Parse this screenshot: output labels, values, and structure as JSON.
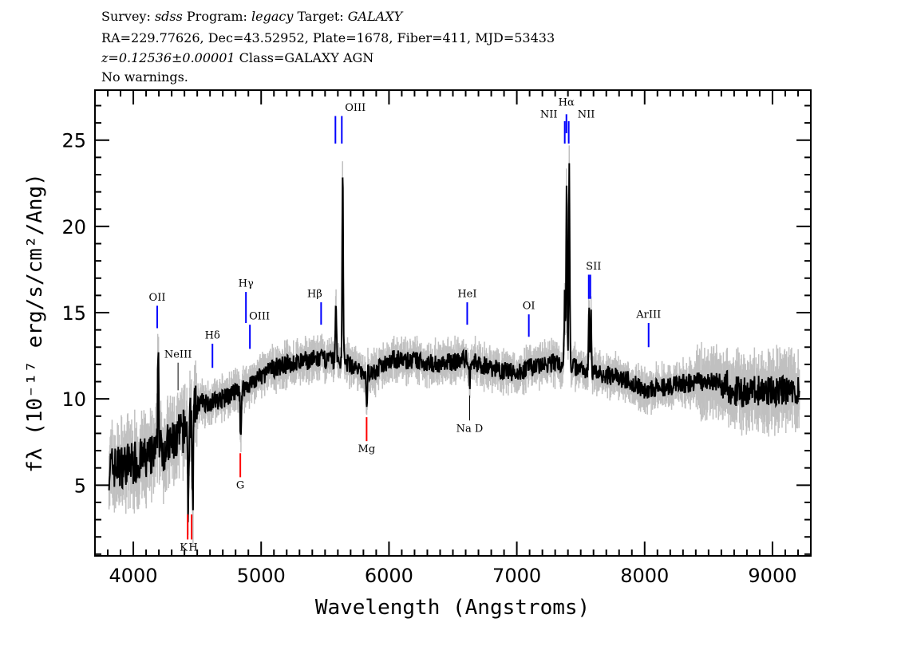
{
  "header": {
    "line1": [
      {
        "text": "Survey: ",
        "italic": false
      },
      {
        "text": "sdss",
        "italic": true
      },
      {
        "text": " Program: ",
        "italic": false
      },
      {
        "text": "legacy",
        "italic": true
      },
      {
        "text": " Target: ",
        "italic": false
      },
      {
        "text": "GALAXY",
        "italic": true
      }
    ],
    "line2": "RA=229.77626, Dec=43.52952, Plate=1678, Fiber=411, MJD=53433",
    "line3": [
      {
        "text": "z=0.12536±0.00001",
        "italic": true
      },
      {
        "text": " Class=GALAXY AGN",
        "italic": false
      }
    ],
    "line4": "No warnings."
  },
  "chart_data": {
    "type": "line",
    "xlabel": "Wavelength (Angstroms)",
    "ylabel": "fλ (10⁻¹⁷ erg/s/cm²/Ang)",
    "xlim": [
      3700,
      9300
    ],
    "ylim": [
      0.9,
      27.9
    ],
    "xticks": [
      4000,
      5000,
      6000,
      7000,
      8000,
      9000
    ],
    "yticks": [
      5,
      10,
      15,
      20,
      25
    ],
    "grid": false,
    "colors": {
      "flux": "#000000",
      "error_band": "#c0c0c0",
      "emission": "#0000ff",
      "absorption": "#ff0000",
      "neutral": "#000000"
    },
    "continuum": [
      [
        3810,
        6.0
      ],
      [
        3900,
        6.1
      ],
      [
        4000,
        6.3
      ],
      [
        4100,
        6.5
      ],
      [
        4180,
        6.8
      ],
      [
        4250,
        7.2
      ],
      [
        4330,
        7.6
      ],
      [
        4400,
        8.2
      ],
      [
        4480,
        9.4
      ],
      [
        4520,
        9.8
      ],
      [
        4600,
        9.8
      ],
      [
        4700,
        10.0
      ],
      [
        4800,
        10.4
      ],
      [
        4900,
        10.8
      ],
      [
        5000,
        11.3
      ],
      [
        5100,
        11.8
      ],
      [
        5200,
        12.0
      ],
      [
        5300,
        12.1
      ],
      [
        5400,
        12.3
      ],
      [
        5500,
        12.3
      ],
      [
        5700,
        12.0
      ],
      [
        5780,
        11.5
      ],
      [
        5900,
        11.6
      ],
      [
        6000,
        12.3
      ],
      [
        6200,
        12.2
      ],
      [
        6400,
        12.0
      ],
      [
        6600,
        12.3
      ],
      [
        6800,
        11.8
      ],
      [
        7000,
        11.5
      ],
      [
        7100,
        11.8
      ],
      [
        7300,
        12.1
      ],
      [
        7500,
        11.8
      ],
      [
        7700,
        11.4
      ],
      [
        7900,
        11.0
      ],
      [
        8000,
        10.5
      ],
      [
        8200,
        10.7
      ],
      [
        8400,
        11.0
      ],
      [
        8600,
        11.0
      ],
      [
        8700,
        10.4
      ],
      [
        9000,
        10.5
      ],
      [
        9210,
        10.4
      ]
    ],
    "features": [
      {
        "wave": 4195,
        "peak": 13.3
      },
      {
        "wave": 4430,
        "peak": 3.4
      },
      {
        "wave": 4465,
        "peak": 3.8
      },
      {
        "wave": 4840,
        "peak": 7.4
      },
      {
        "wave": 5585,
        "peak": 15.9
      },
      {
        "wave": 5638,
        "peak": 23.7
      },
      {
        "wave": 5825,
        "peak": 9.3
      },
      {
        "wave": 6632,
        "peak": 10.8
      },
      {
        "wave": 7375,
        "peak": 16.0
      },
      {
        "wave": 7390,
        "peak": 22.6
      },
      {
        "wave": 7410,
        "peak": 23.8
      },
      {
        "wave": 7565,
        "peak": 14.9
      },
      {
        "wave": 7580,
        "peak": 14.8
      }
    ],
    "markers": [
      {
        "wave": 4187,
        "top": 15.4,
        "bottom": 14.1,
        "type": "emission",
        "label": "OII",
        "label_y": 15.7
      },
      {
        "wave": 4350,
        "top": 12.1,
        "bottom": 10.5,
        "type": "neutral",
        "label": "NeIII",
        "label_y": 12.4
      },
      {
        "wave": 4619,
        "top": 13.2,
        "bottom": 11.8,
        "type": "emission",
        "label": "Hδ",
        "label_y": 13.5
      },
      {
        "wave": 4881,
        "top": 16.2,
        "bottom": 14.4,
        "type": "emission",
        "label": "Hγ",
        "label_y": 16.5
      },
      {
        "wave": 4912,
        "top": 14.3,
        "bottom": 12.9,
        "type": "emission",
        "label": "OIII",
        "label_y": 14.6,
        "label_dx": 12
      },
      {
        "wave": 5469,
        "top": 15.6,
        "bottom": 14.3,
        "type": "emission",
        "label": "Hβ",
        "label_y": 15.9,
        "label_dx": -8
      },
      {
        "wave": 5581,
        "top": 26.4,
        "bottom": 24.8,
        "type": "emission",
        "label": "OIII",
        "label_y": 26.7,
        "label_dx": 25
      },
      {
        "wave": 5631,
        "top": 26.4,
        "bottom": 24.8,
        "type": "emission",
        "label": "",
        "label_y": 0
      },
      {
        "wave": 6612,
        "top": 15.6,
        "bottom": 14.3,
        "type": "emission",
        "label": "HeI",
        "label_y": 15.9
      },
      {
        "wave": 7094,
        "top": 14.9,
        "bottom": 13.6,
        "type": "emission",
        "label": "OI",
        "label_y": 15.2
      },
      {
        "wave": 7375,
        "top": 26.1,
        "bottom": 24.8,
        "type": "emission",
        "label": "NII",
        "label_y": 26.3,
        "label_dx": -20
      },
      {
        "wave": 7388,
        "top": 26.5,
        "bottom": 25.4,
        "type": "emission",
        "label": "Hα",
        "label_y": 27.0
      },
      {
        "wave": 7406,
        "top": 26.1,
        "bottom": 24.8,
        "type": "emission",
        "label": "NII",
        "label_y": 26.3,
        "label_dx": 22
      },
      {
        "wave": 7563,
        "top": 17.2,
        "bottom": 15.8,
        "type": "emission",
        "label": "SII",
        "label_y": 17.5,
        "label_dx": 6
      },
      {
        "wave": 7575,
        "top": 17.2,
        "bottom": 15.8,
        "type": "emission",
        "label": "",
        "label_y": 0
      },
      {
        "wave": 8031,
        "top": 14.4,
        "bottom": 13.0,
        "type": "emission",
        "label": "ArIII",
        "label_y": 14.7
      },
      {
        "wave": 4425,
        "top": 3.3,
        "bottom": 1.85,
        "type": "absorption",
        "label": "K",
        "label_y": 1.2,
        "label_dx": -5
      },
      {
        "wave": 4456,
        "top": 3.3,
        "bottom": 1.85,
        "type": "absorption",
        "label": "H",
        "label_y": 1.2,
        "label_dx": 2
      },
      {
        "wave": 4837,
        "top": 6.85,
        "bottom": 5.46,
        "type": "absorption",
        "label": "G",
        "label_y": 4.8
      },
      {
        "wave": 5825,
        "top": 8.94,
        "bottom": 7.55,
        "type": "absorption",
        "label": "Mg",
        "label_y": 6.9
      },
      {
        "wave": 6631,
        "top": 10.2,
        "bottom": 8.75,
        "type": "neutral",
        "label": "Na D",
        "label_y": 8.1
      }
    ]
  }
}
